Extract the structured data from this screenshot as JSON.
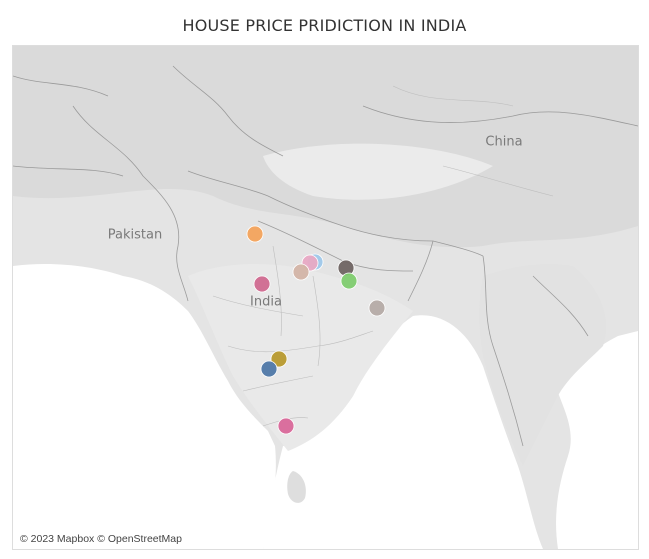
{
  "title": "HOUSE PRICE PRIDICTION IN INDIA",
  "map": {
    "labels": {
      "china": "China",
      "pakistan": "Pakistan",
      "india": "India"
    },
    "attribution": "© 2023 Mapbox © OpenStreetMap"
  },
  "markers": [
    {
      "color": "#f3a35c",
      "name": "marker-punjab-orange"
    },
    {
      "color": "#9fc8ea",
      "name": "marker-lucknow-blue"
    },
    {
      "color": "#e8a9c4",
      "name": "marker-lucknow-pink"
    },
    {
      "color": "#d3b4a6",
      "name": "marker-lucknow-tan"
    },
    {
      "color": "#6f6462",
      "name": "marker-patna-dark"
    },
    {
      "color": "#7fcc6f",
      "name": "marker-patna-green"
    },
    {
      "color": "#d06a90",
      "name": "marker-rajasthan-pink"
    },
    {
      "color": "#b5aba6",
      "name": "marker-kolkata-gray"
    },
    {
      "color": "#b89a2e",
      "name": "marker-hyderabad-gold"
    },
    {
      "color": "#4f78a8",
      "name": "marker-hyderabad-blue"
    },
    {
      "color": "#d9689a",
      "name": "marker-chennai-pink"
    }
  ]
}
